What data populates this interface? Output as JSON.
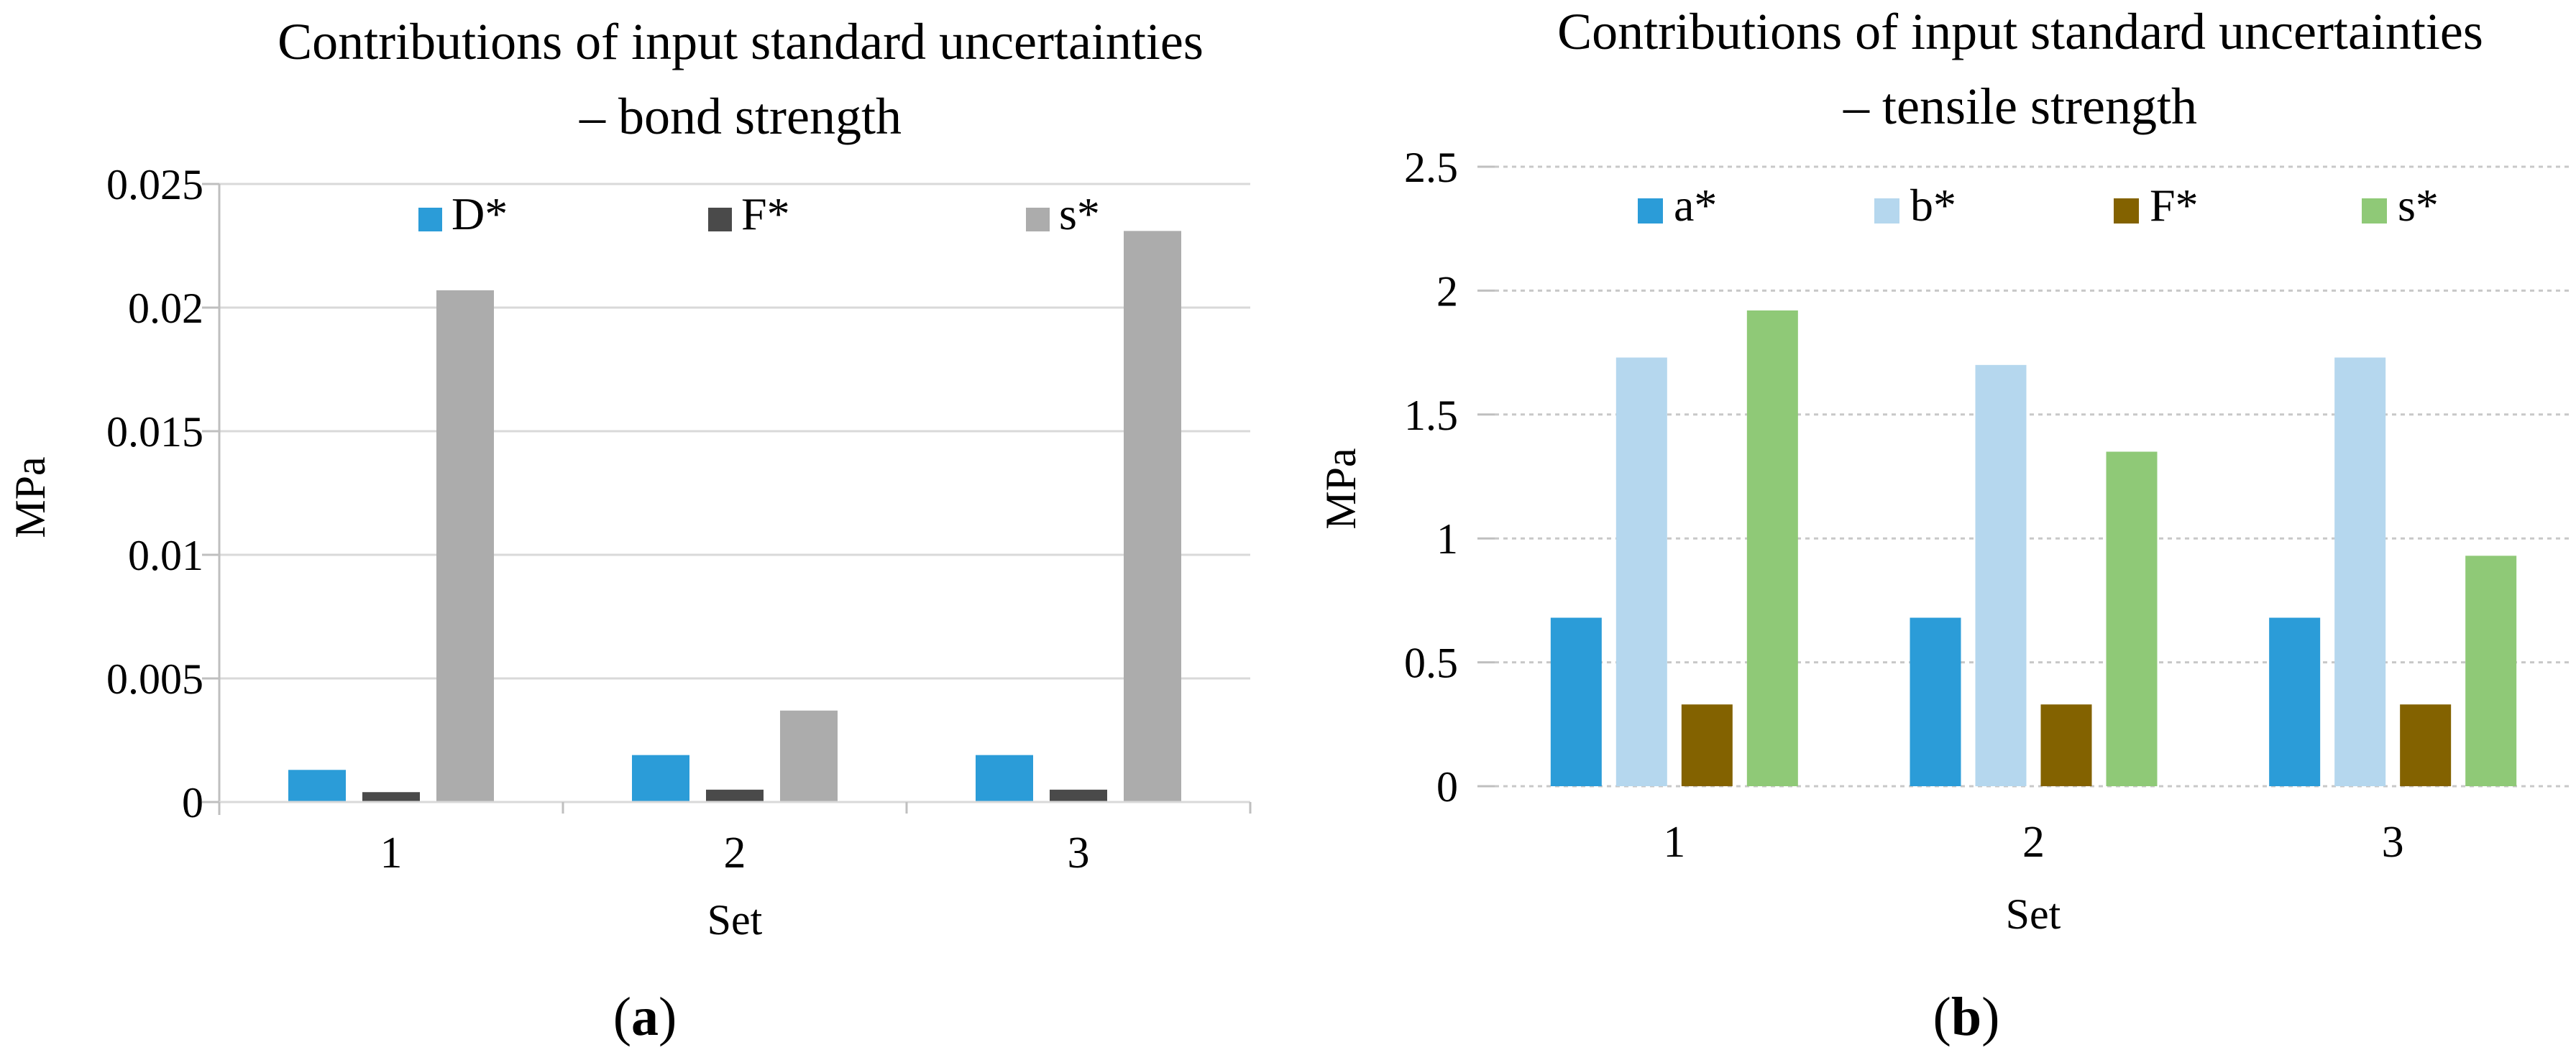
{
  "figure": {
    "background": "#FFFFFF",
    "grid_color_solid": "#D9D9D9",
    "grid_color_dashed": "#C8C8C8",
    "axis_color": "#BFBFBF",
    "text_color": "#000000"
  },
  "chart_data": [
    {
      "type": "bar",
      "panel_caption": "a",
      "title_lines": [
        "Contributions of input standard uncertainties",
        "– bond strength"
      ],
      "title": "Contributions of input standard uncertainties – bond strength",
      "xlabel": "Set",
      "ylabel": "MPa",
      "categories": [
        "1",
        "2",
        "3"
      ],
      "series": [
        {
          "name": "D*",
          "color": "#2B9CD8",
          "values": [
            0.0013,
            0.0019,
            0.0019
          ]
        },
        {
          "name": "F*",
          "color": "#4A4A4A",
          "values": [
            0.0004,
            0.0005,
            0.0005
          ]
        },
        {
          "name": "s*",
          "color": "#ACACAC",
          "values": [
            0.0207,
            0.0037,
            0.0231
          ]
        }
      ],
      "ylim": [
        0,
        0.025
      ],
      "yticks": [
        {
          "v": 0,
          "label": "0"
        },
        {
          "v": 0.005,
          "label": "0.005"
        },
        {
          "v": 0.01,
          "label": "0.01"
        },
        {
          "v": 0.015,
          "label": "0.015"
        },
        {
          "v": 0.02,
          "label": "0.02"
        },
        {
          "v": 0.025,
          "label": "0.025"
        }
      ],
      "grid": "horizontal solid",
      "legend_position": "top inside"
    },
    {
      "type": "bar",
      "panel_caption": "b",
      "title_lines": [
        "Contributions of input standard uncertainties",
        "– tensile strength"
      ],
      "title": "Contributions of input standard uncertainties – tensile strength",
      "xlabel": "Set",
      "ylabel": "MPa",
      "categories": [
        "1",
        "2",
        "3"
      ],
      "series": [
        {
          "name": "a*",
          "color": "#2B9CD8",
          "values": [
            0.68,
            0.68,
            0.68
          ]
        },
        {
          "name": "b*",
          "color": "#B5D7EE",
          "values": [
            1.73,
            1.7,
            1.73
          ]
        },
        {
          "name": "F*",
          "color": "#836200",
          "values": [
            0.33,
            0.33,
            0.33
          ]
        },
        {
          "name": "s*",
          "color": "#8FC977",
          "values": [
            1.92,
            1.35,
            0.93
          ]
        }
      ],
      "ylim": [
        0,
        2.5
      ],
      "yticks": [
        {
          "v": 0,
          "label": "0"
        },
        {
          "v": 0.5,
          "label": "0.5"
        },
        {
          "v": 1,
          "label": "1"
        },
        {
          "v": 1.5,
          "label": "1.5"
        },
        {
          "v": 2,
          "label": "2"
        },
        {
          "v": 2.5,
          "label": "2.5"
        }
      ],
      "grid": "horizontal dashed",
      "legend_position": "top inside"
    }
  ]
}
